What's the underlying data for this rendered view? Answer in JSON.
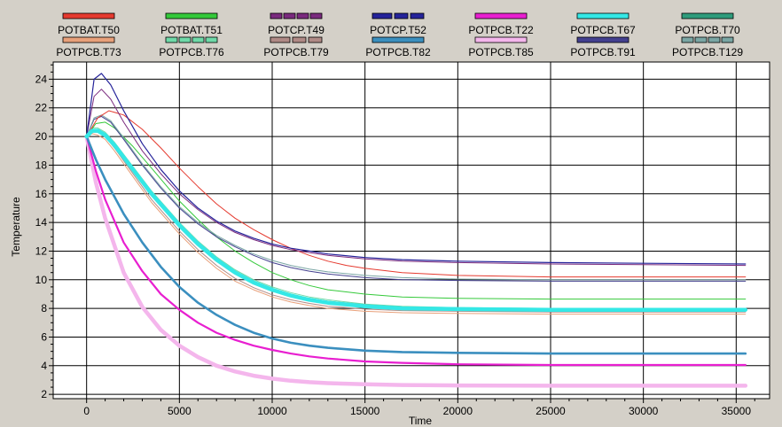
{
  "chart_data": {
    "type": "line",
    "xlabel": "Time",
    "ylabel": "Temperature",
    "xlim": [
      -1800,
      36800
    ],
    "ylim": [
      1.7,
      25.2
    ],
    "xticks": [
      0,
      5000,
      10000,
      15000,
      20000,
      25000,
      30000,
      35000
    ],
    "yticks": [
      2,
      4,
      6,
      8,
      10,
      12,
      14,
      16,
      18,
      20,
      22,
      24
    ],
    "grid": true,
    "legend_position": "top",
    "series": [
      {
        "name": "POTBAT.T50",
        "color": "#e53a2f",
        "width": 1,
        "legend_style": "solid",
        "x": [
          0,
          600,
          1200,
          2000,
          3000,
          4000,
          5000,
          6000,
          7000,
          8000,
          9000,
          10000,
          11000,
          12000,
          13000,
          14000,
          15000,
          17000,
          20000,
          25000,
          30000,
          35500
        ],
        "y": [
          20,
          21.3,
          21.8,
          21.5,
          20.5,
          19.2,
          17.8,
          16.5,
          15.3,
          14.3,
          13.5,
          12.8,
          12.2,
          11.7,
          11.3,
          11.0,
          10.8,
          10.5,
          10.3,
          10.2,
          10.2,
          10.2
        ]
      },
      {
        "name": "POTBAT.T51",
        "color": "#34c93a",
        "width": 1,
        "legend_style": "solid",
        "x": [
          0,
          500,
          1000,
          1500,
          2500,
          3500,
          5000,
          6000,
          7000,
          8000,
          9000,
          10000,
          11000,
          12000,
          13000,
          15000,
          17000,
          20000,
          25000,
          30000,
          35500
        ],
        "y": [
          20,
          20.9,
          21.0,
          20.6,
          19.3,
          17.8,
          15.5,
          14.2,
          13.0,
          12.0,
          11.2,
          10.5,
          10.0,
          9.6,
          9.3,
          9.0,
          8.8,
          8.7,
          8.65,
          8.65,
          8.65
        ]
      },
      {
        "name": "POTCP.T49",
        "color": "#7a2a7e",
        "width": 1,
        "legend_style": "dash",
        "x": [
          0,
          400,
          800,
          1300,
          2000,
          3000,
          4000,
          5000,
          6000,
          7000,
          8000,
          9000,
          10000,
          11000,
          12000,
          13000,
          15000,
          17000,
          20000,
          25000,
          30000,
          35500
        ],
        "y": [
          20,
          22.8,
          23.3,
          22.6,
          21.0,
          19.0,
          17.4,
          16.0,
          14.9,
          14.0,
          13.3,
          12.8,
          12.4,
          12.1,
          11.9,
          11.7,
          11.45,
          11.3,
          11.2,
          11.1,
          11.05,
          11.0
        ]
      },
      {
        "name": "POTCP.T52",
        "color": "#25239a",
        "width": 1.2,
        "legend_style": "dashdot",
        "x": [
          0,
          400,
          800,
          1300,
          2000,
          3000,
          4000,
          5000,
          6000,
          7000,
          8000,
          9000,
          10000,
          11000,
          12000,
          13000,
          15000,
          17000,
          20000,
          25000,
          30000,
          35500
        ],
        "y": [
          20,
          24.0,
          24.4,
          23.6,
          21.8,
          19.5,
          17.7,
          16.2,
          15.0,
          14.1,
          13.4,
          12.9,
          12.5,
          12.2,
          12.0,
          11.8,
          11.55,
          11.4,
          11.3,
          11.2,
          11.15,
          11.1
        ]
      },
      {
        "name": "POTPCB.T22",
        "color": "#e81fd0",
        "width": 2.2,
        "legend_style": "solid",
        "x": [
          0,
          500,
          1000,
          2000,
          3000,
          4000,
          5000,
          6000,
          7000,
          8000,
          9000,
          10000,
          11000,
          12000,
          13000,
          15000,
          17000,
          20000,
          25000,
          30000,
          35500
        ],
        "y": [
          20,
          17.6,
          15.6,
          12.6,
          10.6,
          9.0,
          7.9,
          7.0,
          6.3,
          5.8,
          5.4,
          5.1,
          4.85,
          4.65,
          4.5,
          4.3,
          4.2,
          4.1,
          4.05,
          4.05,
          4.05
        ]
      },
      {
        "name": "POTPCB.T67",
        "color": "#34e8e6",
        "width": 4.5,
        "legend_style": "solid",
        "x": [
          0,
          300,
          600,
          1000,
          1500,
          2500,
          3500,
          5000,
          6000,
          7000,
          8000,
          9000,
          10000,
          11000,
          12000,
          13000,
          15000,
          17000,
          20000,
          25000,
          30000,
          35500
        ],
        "y": [
          20,
          20.4,
          20.4,
          20.1,
          19.4,
          17.7,
          16.0,
          13.8,
          12.5,
          11.4,
          10.5,
          9.8,
          9.3,
          8.9,
          8.6,
          8.4,
          8.15,
          8.0,
          7.95,
          7.9,
          7.9,
          7.9
        ]
      },
      {
        "name": "POTPCB.T70",
        "color": "#2f9c7c",
        "width": 1,
        "legend_style": "solid",
        "x": [
          0,
          300,
          600,
          1000,
          1500,
          2500,
          3500,
          5000,
          6000,
          7000,
          8000,
          9000,
          10000,
          11000,
          12000,
          13000,
          15000,
          17000,
          20000,
          25000,
          30000,
          35500
        ],
        "y": [
          20,
          20.5,
          20.5,
          20.2,
          19.5,
          17.8,
          16.1,
          13.9,
          12.6,
          11.5,
          10.6,
          9.9,
          9.4,
          9.0,
          8.7,
          8.5,
          8.25,
          8.1,
          8.0,
          7.95,
          7.95,
          7.95
        ]
      },
      {
        "name": "POTPCB.T73",
        "color": "#e8a07a",
        "width": 1,
        "legend_style": "solid",
        "x": [
          0,
          300,
          600,
          1000,
          1500,
          2500,
          3500,
          5000,
          6000,
          7000,
          8000,
          9000,
          10000,
          11000,
          12000,
          13000,
          15000,
          17000,
          20000,
          25000,
          30000,
          35500
        ],
        "y": [
          20,
          20.2,
          20.1,
          19.8,
          19.0,
          17.2,
          15.4,
          13.2,
          11.9,
          10.8,
          9.9,
          9.3,
          8.8,
          8.45,
          8.2,
          8.0,
          7.8,
          7.7,
          7.65,
          7.6,
          7.6,
          7.6
        ]
      },
      {
        "name": "POTPCB.T76",
        "color": "#6fd9a8",
        "width": 1,
        "legend_style": "dash",
        "x": [
          0,
          300,
          600,
          1000,
          1500,
          2500,
          3500,
          5000,
          6000,
          7000,
          8000,
          9000,
          10000,
          11000,
          12000,
          13000,
          15000,
          17000,
          20000,
          25000,
          30000,
          35500
        ],
        "y": [
          20,
          20.6,
          20.6,
          20.3,
          19.6,
          17.9,
          16.2,
          14.0,
          12.7,
          11.6,
          10.7,
          10.0,
          9.5,
          9.1,
          8.8,
          8.6,
          8.3,
          8.15,
          8.05,
          8.0,
          8.0,
          8.0
        ]
      },
      {
        "name": "POTPCB.T79",
        "color": "#b08a86",
        "width": 1,
        "legend_style": "dashdot",
        "x": [
          0,
          300,
          600,
          1000,
          1500,
          2500,
          3500,
          5000,
          6000,
          7000,
          8000,
          9000,
          10000,
          11000,
          12000,
          13000,
          15000,
          17000,
          20000,
          25000,
          30000,
          35500
        ],
        "y": [
          20,
          20.3,
          20.3,
          20.0,
          19.2,
          17.4,
          15.6,
          13.4,
          12.1,
          11.0,
          10.1,
          9.45,
          8.95,
          8.6,
          8.35,
          8.15,
          7.95,
          7.85,
          7.8,
          7.75,
          7.75,
          7.75
        ]
      },
      {
        "name": "POTPCB.T82",
        "color": "#3b8fbf",
        "width": 2.6,
        "legend_style": "solid",
        "x": [
          0,
          500,
          1000,
          2000,
          3000,
          4000,
          5000,
          6000,
          7000,
          8000,
          9000,
          10000,
          11000,
          12000,
          13000,
          15000,
          17000,
          20000,
          25000,
          30000,
          35500
        ],
        "y": [
          20,
          18.4,
          17.0,
          14.6,
          12.6,
          10.9,
          9.5,
          8.4,
          7.55,
          6.85,
          6.3,
          5.9,
          5.6,
          5.4,
          5.25,
          5.05,
          4.95,
          4.9,
          4.85,
          4.85,
          4.85
        ]
      },
      {
        "name": "POTPCB.T85",
        "color": "#f4b6ec",
        "width": 4.5,
        "legend_style": "solid",
        "x": [
          0,
          500,
          1000,
          2000,
          3000,
          4000,
          5000,
          6000,
          7000,
          8000,
          9000,
          10000,
          11000,
          12000,
          13000,
          15000,
          17000,
          20000,
          25000,
          30000,
          35500
        ],
        "y": [
          20,
          16.8,
          14.3,
          10.5,
          8.1,
          6.5,
          5.4,
          4.6,
          4.0,
          3.6,
          3.3,
          3.1,
          2.95,
          2.85,
          2.78,
          2.7,
          2.65,
          2.62,
          2.6,
          2.6,
          2.6
        ]
      },
      {
        "name": "POTPCB.T91",
        "color": "#43408f",
        "width": 1,
        "legend_style": "solid",
        "x": [
          0,
          400,
          800,
          1300,
          2000,
          3000,
          4000,
          5000,
          6000,
          7000,
          8000,
          9000,
          10000,
          11000,
          12000,
          13000,
          15000,
          17000,
          20000,
          25000,
          30000,
          35500
        ],
        "y": [
          20,
          21.2,
          21.4,
          21.0,
          19.8,
          18.0,
          16.4,
          15.0,
          13.9,
          13.0,
          12.3,
          11.7,
          11.2,
          10.85,
          10.6,
          10.4,
          10.15,
          10.0,
          9.95,
          9.9,
          9.9,
          9.9
        ]
      },
      {
        "name": "POTPCB.T129",
        "color": "#7aa6a4",
        "width": 1,
        "legend_style": "dash",
        "x": [
          0,
          400,
          800,
          1300,
          2000,
          3000,
          4000,
          5000,
          6000,
          7000,
          8000,
          9000,
          10000,
          11000,
          12000,
          13000,
          15000,
          17000,
          20000,
          25000,
          30000,
          35500
        ],
        "y": [
          20,
          21.3,
          21.5,
          21.1,
          19.9,
          18.1,
          16.5,
          15.1,
          14.0,
          13.1,
          12.4,
          11.8,
          11.35,
          11.0,
          10.75,
          10.55,
          10.3,
          10.15,
          10.05,
          10.0,
          10.0,
          10.0
        ]
      }
    ]
  }
}
